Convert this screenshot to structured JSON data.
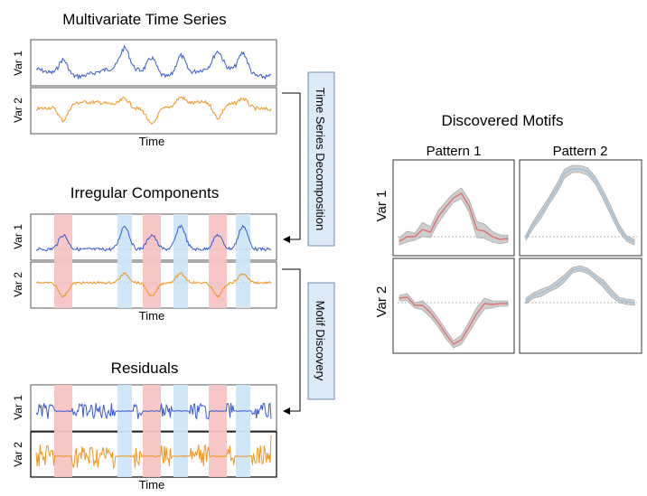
{
  "left": {
    "multivariate": {
      "title": "Multivariate Time Series",
      "var1_label": "Var 1",
      "var2_label": "Var 2",
      "xlabel": "Time"
    },
    "irregular": {
      "title": "Irregular Components",
      "var1_label": "Var 1",
      "var2_label": "Var 2",
      "xlabel": "Time"
    },
    "residuals": {
      "title": "Residuals",
      "var1_label": "Var 1",
      "var2_label": "Var 2",
      "xlabel": "Time"
    }
  },
  "process": {
    "decomposition_label": "Time Series Decomposition",
    "motif_label": "Motif Discovery"
  },
  "motifs": {
    "title": "Discovered Motifs",
    "pattern1_label": "Pattern 1",
    "pattern2_label": "Pattern 2",
    "var1_label": "Var 1",
    "var2_label": "Var 2"
  },
  "colors": {
    "var1_line": "#3a5bcf",
    "var2_line": "#f0961f",
    "pattern1_band": "#f7c4c4",
    "pattern2_band": "#cde6f7",
    "pattern1_motif": "#e07070",
    "pattern2_motif": "#9cc2e0",
    "box_fill": "#dce9f7",
    "box_stroke": "#6f8fb5"
  }
}
